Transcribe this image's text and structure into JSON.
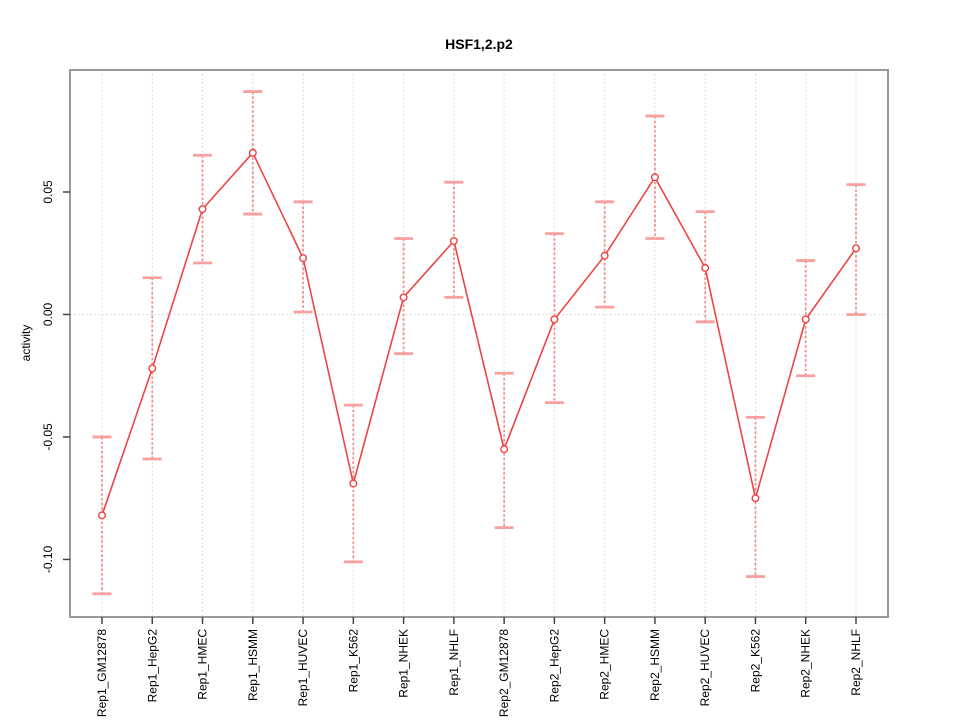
{
  "title": "HSF1,2.p2",
  "colors": {
    "series_line": "#ee4444",
    "point_stroke": "#ee4444",
    "point_fill": "#ffffff",
    "error_bar": "#f58f8f",
    "error_cap": "#f8a0a0",
    "grid_line": "#d4d4d4",
    "zero_line": "#d4d4d4",
    "frame": "#999999",
    "tick": "#444444",
    "text": "#000000",
    "background": "#ffffff"
  },
  "chart_data": {
    "type": "line",
    "title": "HSF1,2.p2",
    "xlabel": "",
    "ylabel": "activity",
    "ylim": [
      -0.1235,
      0.0998
    ],
    "y_ticks": [
      {
        "value": 0.05,
        "label": "0.05"
      },
      {
        "value": 0.0,
        "label": "0.00"
      },
      {
        "value": -0.05,
        "label": "-0.05"
      },
      {
        "value": -0.1,
        "label": "-0.10"
      }
    ],
    "grid": "dotted vertical line at each category; dotted horizontal line at y=0",
    "legend_position": "none",
    "marker": "open-circle",
    "error_bars": true,
    "categories": [
      "Rep1_GM12878",
      "Rep1_HepG2",
      "Rep1_HMEC",
      "Rep1_HSMM",
      "Rep1_HUVEC",
      "Rep1_K562",
      "Rep1_NHEK",
      "Rep1_NHLF",
      "Rep2_GM12878",
      "Rep2_HepG2",
      "Rep2_HMEC",
      "Rep2_HSMM",
      "Rep2_HUVEC",
      "Rep2_K562",
      "Rep2_NHEK",
      "Rep2_NHLF"
    ],
    "series": [
      {
        "name": "activity",
        "values": [
          -0.082,
          -0.022,
          0.043,
          0.066,
          0.023,
          -0.069,
          0.007,
          0.03,
          -0.055,
          -0.002,
          0.024,
          0.056,
          0.019,
          -0.075,
          -0.002,
          0.027
        ],
        "error_low": [
          -0.114,
          -0.059,
          0.021,
          0.041,
          0.001,
          -0.101,
          -0.016,
          0.007,
          -0.087,
          -0.036,
          0.003,
          0.031,
          -0.003,
          -0.107,
          -0.025,
          0.0
        ],
        "error_high": [
          -0.05,
          0.015,
          0.065,
          0.091,
          0.046,
          -0.037,
          0.031,
          0.054,
          -0.024,
          0.033,
          0.046,
          0.081,
          0.042,
          -0.042,
          0.022,
          0.053
        ]
      }
    ]
  }
}
